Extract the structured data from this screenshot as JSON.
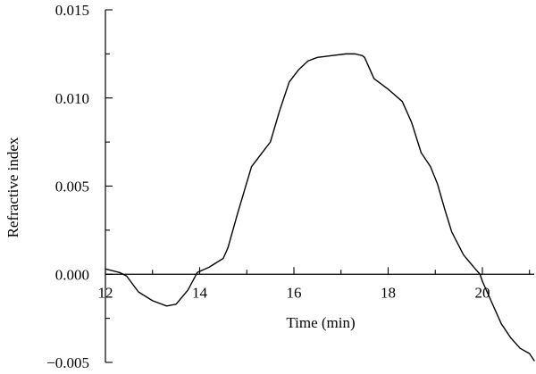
{
  "chart_data": {
    "type": "line",
    "xlabel": "Time (min)",
    "ylabel": "Refractive index",
    "xlim": [
      12,
      21.1
    ],
    "ylim": [
      -0.005,
      0.015
    ],
    "x_ticks": [
      12,
      14,
      16,
      18,
      20
    ],
    "x_tick_labels": [
      "12",
      "14",
      "16",
      "18",
      "20"
    ],
    "y_ticks": [
      -0.005,
      0.0,
      0.005,
      0.01,
      0.015
    ],
    "y_tick_labels": [
      "−0.005",
      "0.000",
      "0.005",
      "0.010",
      "0.015"
    ],
    "grid": false,
    "legend": "none",
    "line_color": "#000000",
    "series": [
      {
        "x": [
          12.0,
          12.3,
          12.45,
          12.7,
          13.0,
          13.3,
          13.5,
          13.75,
          13.95,
          14.2,
          14.5,
          14.6,
          14.8,
          15.0,
          15.1,
          15.3,
          15.5,
          15.7,
          15.9,
          16.1,
          16.3,
          16.5,
          16.8,
          17.1,
          17.3,
          17.45,
          17.5,
          17.7,
          18.0,
          18.3,
          18.5,
          18.7,
          18.9,
          19.05,
          19.2,
          19.35,
          19.6,
          19.85,
          19.95,
          20.0,
          20.2,
          20.4,
          20.6,
          20.8,
          21.0,
          21.1
        ],
        "y": [
          0.0003,
          0.0001,
          -0.0001,
          -0.001,
          -0.0015,
          -0.0018,
          -0.0017,
          -0.0009,
          0.0001,
          0.0004,
          0.0009,
          0.0015,
          0.0034,
          0.0052,
          0.0061,
          0.0068,
          0.0075,
          0.0093,
          0.0109,
          0.0116,
          0.0121,
          0.0123,
          0.0124,
          0.0125,
          0.0125,
          0.0124,
          0.0123,
          0.0111,
          0.0105,
          0.0098,
          0.0086,
          0.0069,
          0.0061,
          0.0051,
          0.0037,
          0.0024,
          0.0011,
          0.0003,
          0.0,
          -0.0004,
          -0.0016,
          -0.0028,
          -0.0036,
          -0.0042,
          -0.0045,
          -0.0049
        ]
      }
    ]
  }
}
